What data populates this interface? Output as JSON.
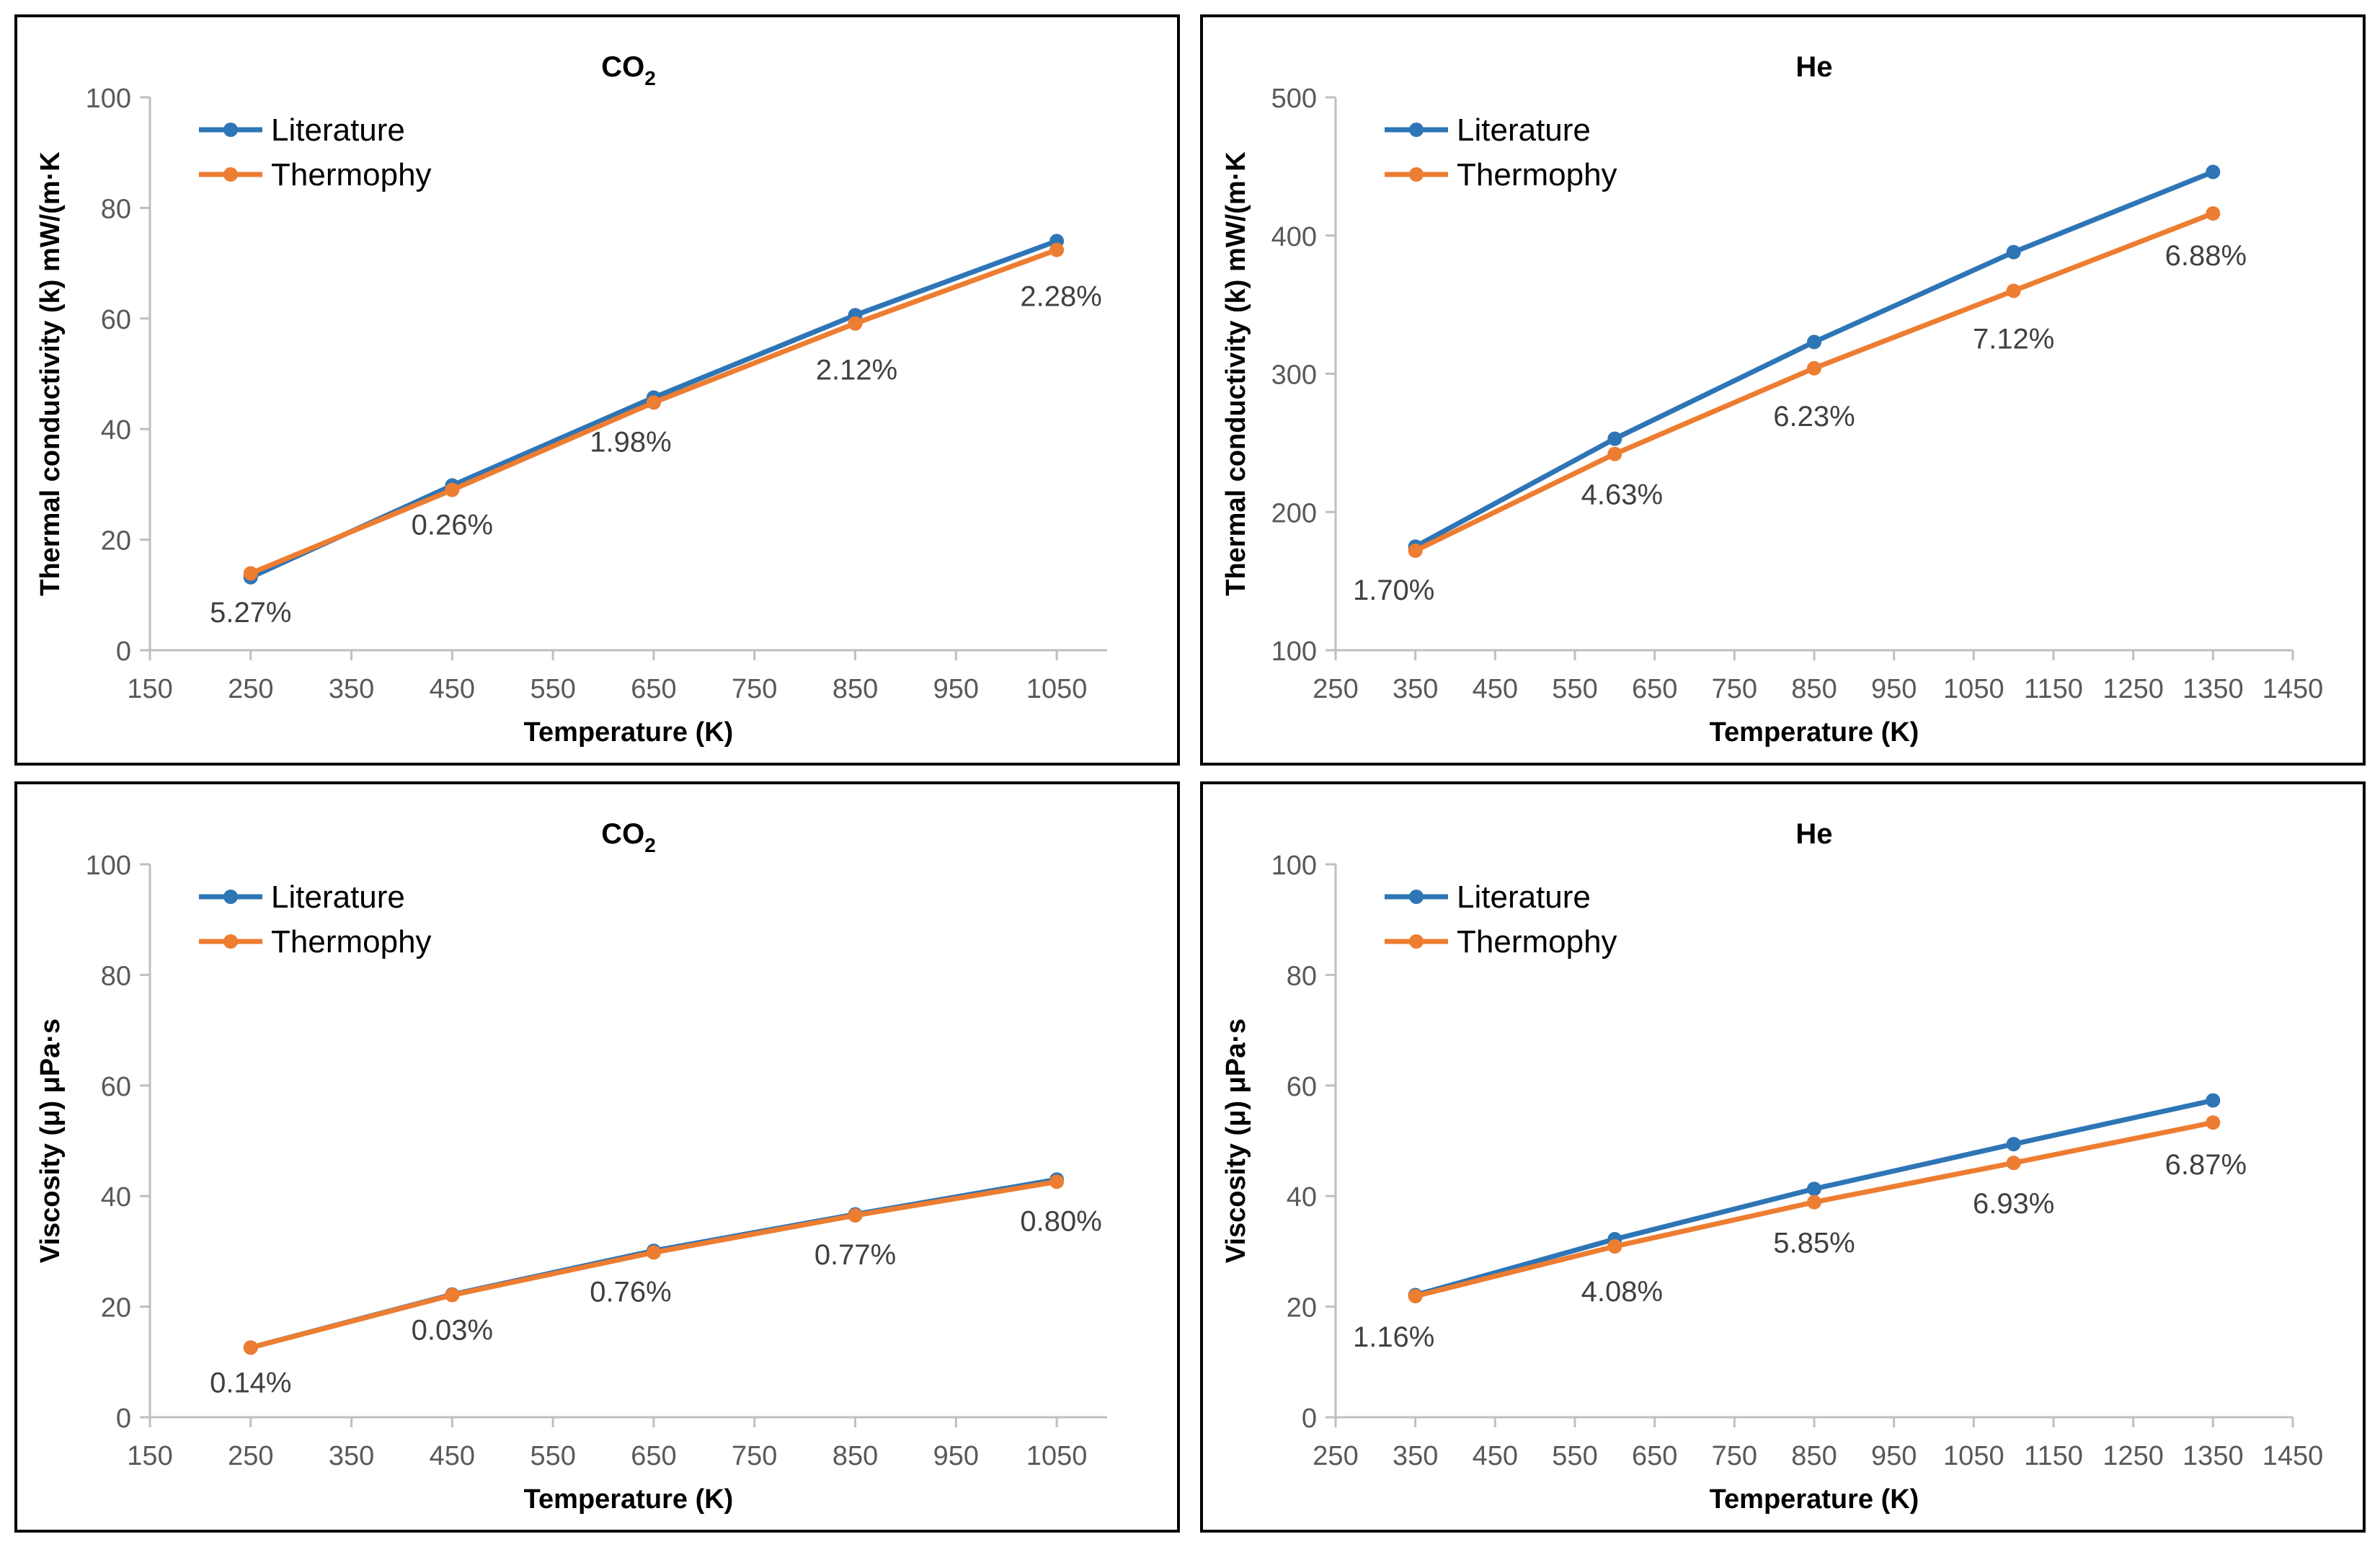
{
  "colors": {
    "literature": "#2E75B6",
    "thermophy": "#ED7D31",
    "axis": "#BFBFBF",
    "tick_text": "#595959",
    "label_text": "#000000"
  },
  "chart_data": [
    {
      "type": "line",
      "title": {
        "main": "CO",
        "sub": "2"
      },
      "xlabel": "Temperature (K)",
      "ylabel": "Thermal conductivity (k) mW/(m·K",
      "xlim": [
        150,
        1100
      ],
      "ylim": [
        0,
        100
      ],
      "xticks": [
        150,
        250,
        350,
        450,
        550,
        650,
        750,
        850,
        950,
        1050
      ],
      "yticks": [
        0,
        20,
        40,
        60,
        80,
        100
      ],
      "legend": "top-left",
      "grid": false,
      "x": [
        250,
        450,
        650,
        850,
        1050
      ],
      "series": [
        {
          "name": "Literature",
          "values": [
            13.2,
            29.8,
            45.7,
            60.6,
            74.0
          ]
        },
        {
          "name": "Thermophy",
          "values": [
            13.9,
            29.0,
            44.8,
            59.1,
            72.4
          ]
        }
      ],
      "annotations": [
        "5.27%",
        "0.26%",
        "1.98%",
        "2.12%",
        "2.28%"
      ]
    },
    {
      "type": "line",
      "title": {
        "main": "He",
        "sub": ""
      },
      "xlabel": "Temperature (K)",
      "ylabel": "Thermal conductivity (k) mW/(m·K",
      "xlim": [
        250,
        1450
      ],
      "ylim": [
        100,
        500
      ],
      "xticks": [
        250,
        350,
        450,
        550,
        650,
        750,
        850,
        950,
        1050,
        1150,
        1250,
        1350,
        1450
      ],
      "yticks": [
        100,
        200,
        300,
        400,
        500
      ],
      "legend": "top-left",
      "grid": false,
      "x": [
        350,
        600,
        850,
        1100,
        1350
      ],
      "series": [
        {
          "name": "Literature",
          "values": [
            175,
            253,
            323,
            388,
            446
          ]
        },
        {
          "name": "Thermophy",
          "values": [
            172,
            242,
            304,
            360,
            416
          ]
        }
      ],
      "annotations": [
        "1.70%",
        "4.63%",
        "6.23%",
        "7.12%",
        "6.88%"
      ]
    },
    {
      "type": "line",
      "title": {
        "main": "CO",
        "sub": "2"
      },
      "xlabel": "Temperature (K)",
      "ylabel": "Viscosity (μ) μPa·s",
      "xlim": [
        150,
        1100
      ],
      "ylim": [
        0,
        100
      ],
      "xticks": [
        150,
        250,
        350,
        450,
        550,
        650,
        750,
        850,
        950,
        1050
      ],
      "yticks": [
        0,
        20,
        40,
        60,
        80,
        100
      ],
      "legend": "top-left",
      "grid": false,
      "x": [
        250,
        450,
        650,
        850,
        1050
      ],
      "series": [
        {
          "name": "Literature",
          "values": [
            12.6,
            22.2,
            30.1,
            36.7,
            43.0
          ]
        },
        {
          "name": "Thermophy",
          "values": [
            12.6,
            22.1,
            29.8,
            36.5,
            42.6
          ]
        }
      ],
      "annotations": [
        "0.14%",
        "0.03%",
        "0.76%",
        "0.77%",
        "0.80%"
      ]
    },
    {
      "type": "line",
      "title": {
        "main": "He",
        "sub": ""
      },
      "xlabel": "Temperature (K)",
      "ylabel": "Viscosity (μ) μPa·s",
      "xlim": [
        250,
        1450
      ],
      "ylim": [
        0,
        100
      ],
      "xticks": [
        250,
        350,
        450,
        550,
        650,
        750,
        850,
        950,
        1050,
        1150,
        1250,
        1350,
        1450
      ],
      "yticks": [
        0,
        20,
        40,
        60,
        80,
        100
      ],
      "legend": "top-left",
      "grid": false,
      "x": [
        350,
        600,
        850,
        1100,
        1350
      ],
      "series": [
        {
          "name": "Literature",
          "values": [
            22.1,
            32.2,
            41.3,
            49.4,
            57.3
          ]
        },
        {
          "name": "Thermophy",
          "values": [
            21.9,
            30.9,
            38.9,
            46.0,
            53.3
          ]
        }
      ],
      "annotations": [
        "1.16%",
        "4.08%",
        "5.85%",
        "6.93%",
        "6.87%"
      ]
    }
  ]
}
